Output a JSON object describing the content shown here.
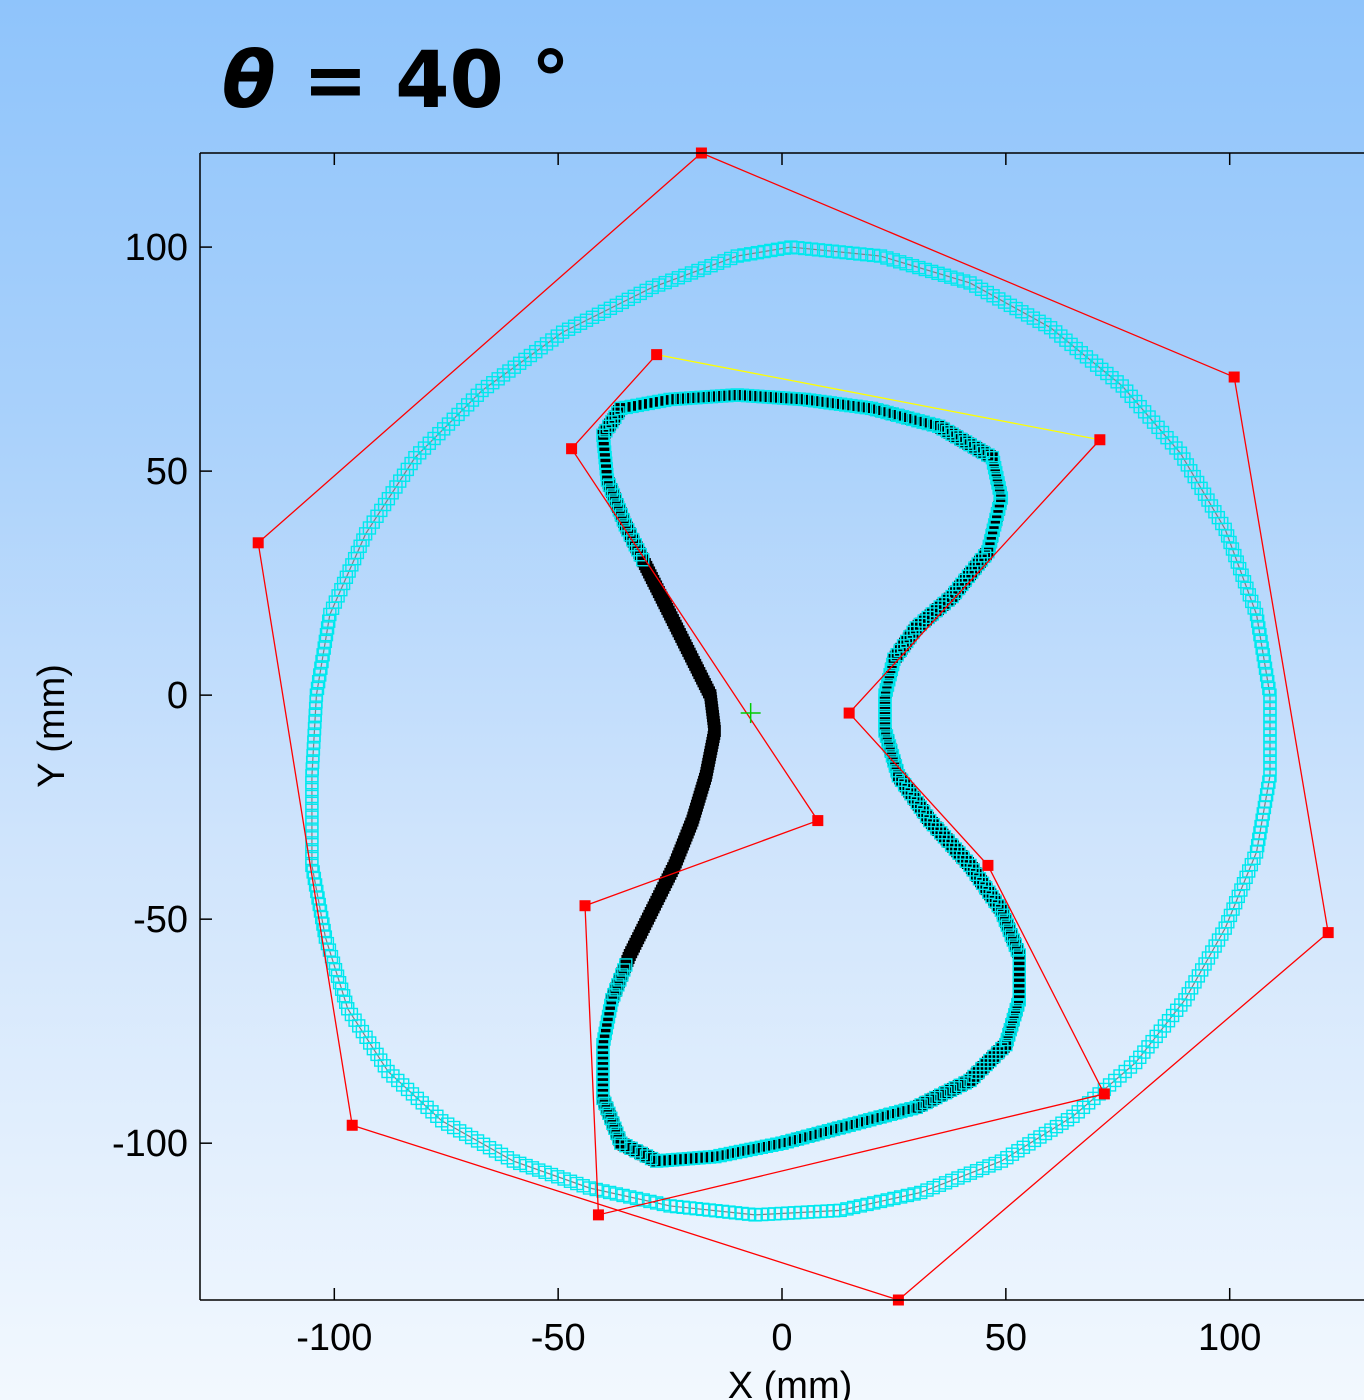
{
  "chart_data": {
    "type": "scatter",
    "title": "θ = 40 °",
    "title_parts": {
      "symbol": "θ",
      "rest": " = 40 °"
    },
    "xlabel": "X (mm)",
    "ylabel": "Y (mm)",
    "xlim": [
      -130,
      130
    ],
    "ylim": [
      -135,
      121
    ],
    "xticks": [
      -100,
      -50,
      0,
      50,
      100
    ],
    "yticks": [
      -100,
      -50,
      0,
      50,
      100
    ],
    "xtick_labels": [
      "-100",
      "-50",
      "0",
      "50",
      "100"
    ],
    "ytick_labels": [
      "-100",
      "-50",
      "0",
      "50",
      "100"
    ],
    "grid": false,
    "center_marker": [
      -7,
      -4
    ],
    "series": [
      {
        "kind": "outer-contour-markers",
        "color": "#00e8ee",
        "points": [
          [
            2,
            100
          ],
          [
            22,
            98
          ],
          [
            42,
            92
          ],
          [
            60,
            82
          ],
          [
            76,
            69
          ],
          [
            89,
            54
          ],
          [
            99,
            37
          ],
          [
            106,
            18
          ],
          [
            109,
            0
          ],
          [
            109,
            -18
          ],
          [
            106,
            -35
          ],
          [
            99,
            -52
          ],
          [
            90,
            -68
          ],
          [
            79,
            -82
          ],
          [
            65,
            -94
          ],
          [
            49,
            -104
          ],
          [
            31,
            -111
          ],
          [
            13,
            -115
          ],
          [
            -6,
            -116
          ],
          [
            -25,
            -114
          ],
          [
            -43,
            -110
          ],
          [
            -60,
            -104
          ],
          [
            -76,
            -95
          ],
          [
            -88,
            -84
          ],
          [
            -97,
            -70
          ],
          [
            -102,
            -54
          ],
          [
            -105,
            -38
          ],
          [
            -105,
            -18
          ],
          [
            -104,
            0
          ],
          [
            -101,
            18
          ],
          [
            -93,
            36
          ],
          [
            -82,
            53
          ],
          [
            -67,
            68
          ],
          [
            -49,
            81
          ],
          [
            -29,
            91
          ],
          [
            -10,
            98
          ],
          [
            2,
            100
          ]
        ]
      },
      {
        "kind": "inner-contour-markers",
        "color": "#00e8ee",
        "points": [
          [
            -10,
            67
          ],
          [
            5,
            66
          ],
          [
            20,
            64
          ],
          [
            35,
            60
          ],
          [
            47,
            53
          ],
          [
            49,
            44
          ],
          [
            46,
            32
          ],
          [
            38,
            22
          ],
          [
            30,
            15
          ],
          [
            25,
            8
          ],
          [
            23,
            0
          ],
          [
            23,
            -8
          ],
          [
            26,
            -18
          ],
          [
            33,
            -28
          ],
          [
            42,
            -38
          ],
          [
            49,
            -48
          ],
          [
            53,
            -58
          ],
          [
            53,
            -68
          ],
          [
            50,
            -78
          ],
          [
            42,
            -86
          ],
          [
            30,
            -92
          ],
          [
            15,
            -96
          ],
          [
            0,
            -100
          ],
          [
            -15,
            -103
          ],
          [
            -28,
            -104
          ],
          [
            -36,
            -100
          ],
          [
            -40,
            -90
          ],
          [
            -40,
            -78
          ],
          [
            -38,
            -68
          ],
          [
            -34,
            -58
          ],
          [
            -29,
            -48
          ],
          [
            -24,
            -38
          ],
          [
            -20,
            -28
          ],
          [
            -17,
            -18
          ],
          [
            -15,
            -8
          ],
          [
            -16,
            0
          ],
          [
            -20,
            8
          ],
          [
            -25,
            18
          ],
          [
            -30,
            28
          ],
          [
            -35,
            38
          ],
          [
            -39,
            48
          ],
          [
            -40,
            58
          ],
          [
            -36,
            64
          ],
          [
            -25,
            66
          ],
          [
            -10,
            67
          ]
        ]
      },
      {
        "kind": "inner-contour-measured",
        "color": "#000000",
        "points": [
          [
            -10,
            67
          ],
          [
            5,
            66
          ],
          [
            20,
            64
          ],
          [
            35,
            60
          ],
          [
            47,
            53
          ],
          [
            49,
            44
          ],
          [
            46,
            32
          ],
          [
            38,
            22
          ],
          [
            30,
            15
          ],
          [
            25,
            8
          ],
          [
            23,
            0
          ],
          [
            23,
            -8
          ],
          [
            26,
            -18
          ],
          [
            33,
            -28
          ],
          [
            42,
            -38
          ],
          [
            49,
            -48
          ],
          [
            53,
            -58
          ],
          [
            53,
            -68
          ],
          [
            50,
            -78
          ],
          [
            42,
            -86
          ],
          [
            30,
            -92
          ],
          [
            15,
            -96
          ],
          [
            0,
            -100
          ],
          [
            -15,
            -103
          ],
          [
            -28,
            -104
          ],
          [
            -36,
            -100
          ],
          [
            -40,
            -90
          ],
          [
            -40,
            -78
          ],
          [
            -38,
            -68
          ],
          [
            -34,
            -58
          ],
          [
            -29,
            -48
          ],
          [
            -24,
            -38
          ],
          [
            -20,
            -28
          ],
          [
            -17,
            -18
          ],
          [
            -15,
            -8
          ],
          [
            -16,
            0
          ],
          [
            -20,
            8
          ],
          [
            -25,
            18
          ],
          [
            -30,
            28
          ],
          [
            -35,
            38
          ],
          [
            -39,
            48
          ],
          [
            -40,
            58
          ],
          [
            -36,
            64
          ],
          [
            -25,
            66
          ],
          [
            -10,
            67
          ]
        ]
      },
      {
        "kind": "outer-control-polygon",
        "color": "#ff0000",
        "closed": true,
        "points": [
          [
            -18,
            121
          ],
          [
            101,
            71
          ],
          [
            122,
            -53
          ],
          [
            26,
            -135
          ],
          [
            -96,
            -96
          ],
          [
            -117,
            34
          ]
        ]
      },
      {
        "kind": "inner-control-polygon",
        "color": "#ff0000",
        "closed": false,
        "points": [
          [
            71,
            57
          ],
          [
            15,
            -4
          ],
          [
            46,
            -38
          ],
          [
            72,
            -89
          ],
          [
            -41,
            -116
          ],
          [
            -44,
            -47
          ],
          [
            8,
            -28
          ],
          [
            -47,
            55
          ],
          [
            -28,
            76
          ]
        ]
      },
      {
        "kind": "inner-control-polygon-closing",
        "color": "#ffff00",
        "closed": false,
        "points": [
          [
            -28,
            76
          ],
          [
            71,
            57
          ]
        ]
      }
    ]
  }
}
